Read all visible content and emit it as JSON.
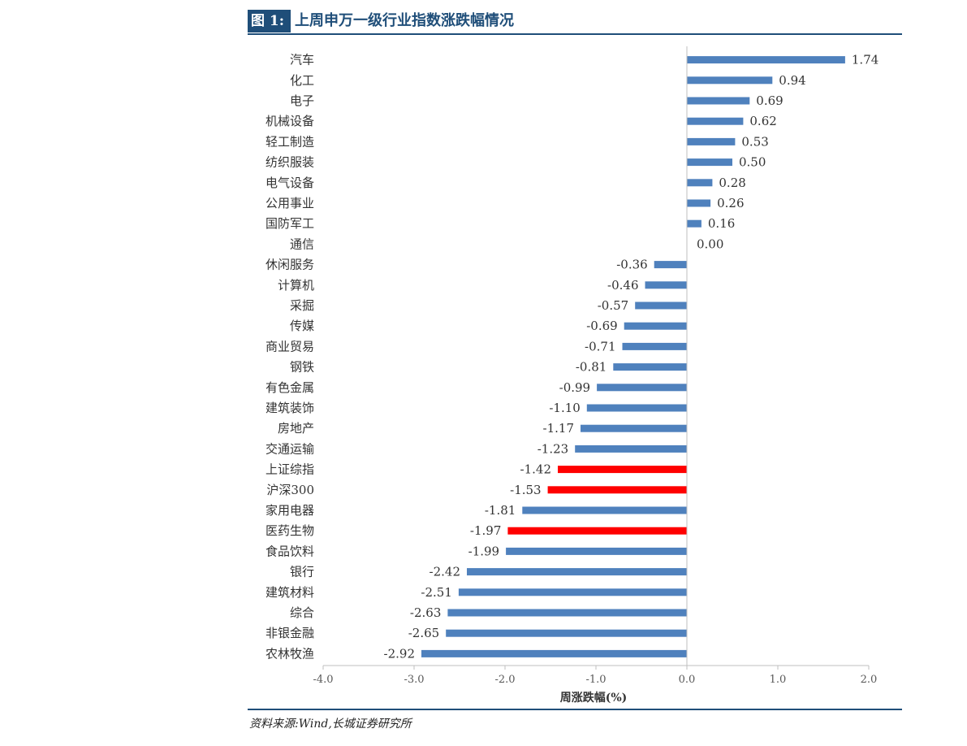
{
  "figure": {
    "label": "图 1:",
    "title": "上周申万一级行业指数涨跌幅情况",
    "source": "资料来源:Wind,长城证券研究所"
  },
  "colors": {
    "default_bar": "#4f81bd",
    "highlight_bar": "#ff0000",
    "header": "#1f4e79"
  },
  "chart_data": {
    "type": "bar",
    "orientation": "horizontal",
    "xlabel": "周涨跌幅(%)",
    "xlim": [
      -4.0,
      2.0
    ],
    "xticks": [
      -4.0,
      -3.0,
      -2.0,
      -1.0,
      0.0,
      1.0,
      2.0
    ],
    "xtick_labels": [
      "-4.0",
      "-3.0",
      "-2.0",
      "-1.0",
      "0.0",
      "1.0",
      "2.0"
    ],
    "grid": false,
    "legend": "none",
    "categories": [
      "汽车",
      "化工",
      "电子",
      "机械设备",
      "轻工制造",
      "纺织服装",
      "电气设备",
      "公用事业",
      "国防军工",
      "通信",
      "休闲服务",
      "计算机",
      "采掘",
      "传媒",
      "商业贸易",
      "钢铁",
      "有色金属",
      "建筑装饰",
      "房地产",
      "交通运输",
      "上证综指",
      "沪深300",
      "家用电器",
      "医药生物",
      "食品饮料",
      "银行",
      "建筑材料",
      "综合",
      "非银金融",
      "农林牧渔"
    ],
    "values": [
      1.74,
      0.94,
      0.69,
      0.62,
      0.53,
      0.5,
      0.28,
      0.26,
      0.16,
      0.0,
      -0.36,
      -0.46,
      -0.57,
      -0.69,
      -0.71,
      -0.81,
      -0.99,
      -1.1,
      -1.17,
      -1.23,
      -1.42,
      -1.53,
      -1.81,
      -1.97,
      -1.99,
      -2.42,
      -2.51,
      -2.63,
      -2.65,
      -2.92
    ],
    "value_labels": [
      "1.74",
      "0.94",
      "0.69",
      "0.62",
      "0.53",
      "0.50",
      "0.28",
      "0.26",
      "0.16",
      "0.00",
      "-0.36",
      "-0.46",
      "-0.57",
      "-0.69",
      "-0.71",
      "-0.81",
      "-0.99",
      "-1.10",
      "-1.17",
      "-1.23",
      "-1.42",
      "-1.53",
      "-1.81",
      "-1.97",
      "-1.99",
      "-2.42",
      "-2.51",
      "-2.63",
      "-2.65",
      "-2.92"
    ],
    "highlighted": [
      "上证综指",
      "沪深300",
      "医药生物"
    ]
  }
}
